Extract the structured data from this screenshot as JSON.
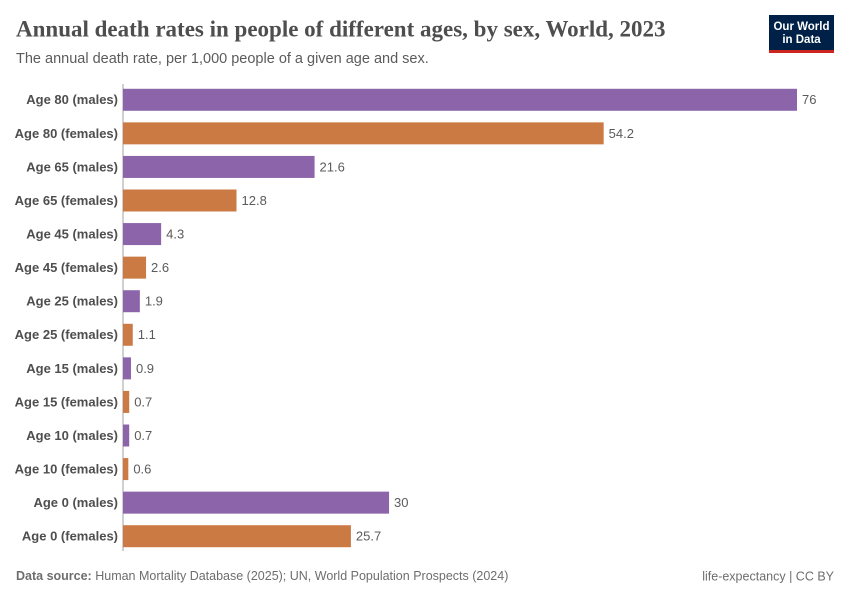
{
  "chart_data": {
    "type": "bar",
    "orientation": "horizontal",
    "title": "Annual death rates in people of different ages, by sex, World, 2023",
    "subtitle": "The annual death rate, per 1,000 people of a given age and sex.",
    "categories": [
      "Age 80 (males)",
      "Age 80 (females)",
      "Age 65 (males)",
      "Age 65 (females)",
      "Age 45 (males)",
      "Age 45 (females)",
      "Age 25 (males)",
      "Age 25 (females)",
      "Age 15 (males)",
      "Age 15 (females)",
      "Age 10 (males)",
      "Age 10 (females)",
      "Age 0 (males)",
      "Age 0 (females)"
    ],
    "values": [
      76,
      54.2,
      21.6,
      12.8,
      4.3,
      2.6,
      1.9,
      1.1,
      0.9,
      0.7,
      0.7,
      0.6,
      30,
      25.7
    ],
    "colors": [
      "#8c64aa",
      "#cc7a44",
      "#8c64aa",
      "#cc7a44",
      "#8c64aa",
      "#cc7a44",
      "#8c64aa",
      "#cc7a44",
      "#8c64aa",
      "#cc7a44",
      "#8c64aa",
      "#cc7a44",
      "#8c64aa",
      "#cc7a44"
    ],
    "xlim": [
      0,
      76
    ]
  },
  "footer": {
    "source_label": "Data source:",
    "source": "Human Mortality Database (2025); UN, World Population Prospects (2024)",
    "right": "life-expectancy | CC BY"
  },
  "logo": [
    "Our World",
    "in Data"
  ]
}
